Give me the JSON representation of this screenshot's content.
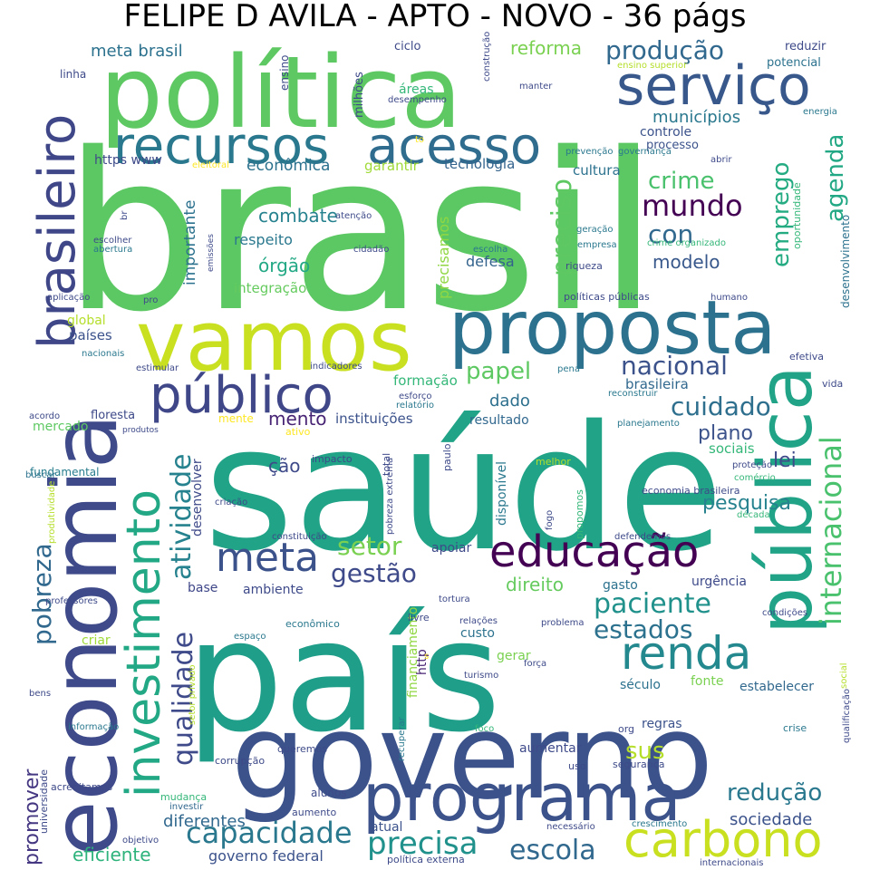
{
  "title": "FELIPE D AVILA - APTO - NOVO - 36 págs",
  "palette": {
    "dark_purple": "#440154",
    "indigo": "#3b528b",
    "blue": "#31688e",
    "teal": "#21908d",
    "green": "#35b779",
    "light_green": "#6ece58",
    "lime": "#b5de2b",
    "yellow": "#fde725"
  },
  "words": [
    {
      "text": "brasil",
      "color": "#5cc863"
    },
    {
      "text": "saúde",
      "color": "#20a386"
    },
    {
      "text": "país",
      "color": "#1f9e89"
    },
    {
      "text": "governo",
      "color": "#3b528b"
    },
    {
      "text": "política",
      "color": "#5ec962"
    },
    {
      "text": "economia",
      "color": "#3e4a89"
    },
    {
      "text": "vamos",
      "color": "#c8e020"
    },
    {
      "text": "proposta",
      "color": "#2c728e"
    },
    {
      "text": "pública",
      "color": "#20a386"
    },
    {
      "text": "programa",
      "color": "#3b528b"
    },
    {
      "text": "investimento",
      "color": "#22a884"
    },
    {
      "text": "serviço",
      "color": "#38588c"
    },
    {
      "text": "recursos",
      "color": "#2a788e"
    },
    {
      "text": "acesso",
      "color": "#2f6c8e"
    },
    {
      "text": "brasileiro",
      "color": "#3f4788"
    },
    {
      "text": "público",
      "color": "#3f4788"
    },
    {
      "text": "educação",
      "color": "#440154"
    },
    {
      "text": "renda",
      "color": "#23898e"
    },
    {
      "text": "carbono",
      "color": "#c8e020"
    },
    {
      "text": "meta",
      "color": "#3b528b"
    },
    {
      "text": "precisa",
      "color": "#21918c"
    },
    {
      "text": "capacidade",
      "color": "#2a788e"
    },
    {
      "text": "escola",
      "color": "#31688e"
    },
    {
      "text": "internacional",
      "color": "#4ac16d"
    },
    {
      "text": "qualidade",
      "color": "#3e4a89"
    },
    {
      "text": "atividade",
      "color": "#26828e"
    },
    {
      "text": "pobreza",
      "color": "#31688e"
    },
    {
      "text": "promover",
      "color": "#453781"
    },
    {
      "text": "paciente",
      "color": "#21918c"
    },
    {
      "text": "estados",
      "color": "#2c728e"
    },
    {
      "text": "nacional",
      "color": "#3b528b"
    },
    {
      "text": "cuidado",
      "color": "#2e6f8e"
    },
    {
      "text": "redução",
      "color": "#2a788e"
    },
    {
      "text": "setor",
      "color": "#7ad151"
    },
    {
      "text": "gestão",
      "color": "#3e4a89"
    },
    {
      "text": "produção",
      "color": "#31688e"
    },
    {
      "text": "mundo",
      "color": "#440154"
    },
    {
      "text": "con",
      "color": "#31688e"
    },
    {
      "text": "crime",
      "color": "#4ac16d"
    },
    {
      "text": "preciso",
      "color": "#5ec962"
    },
    {
      "text": "agenda",
      "color": "#22a884"
    },
    {
      "text": "emprego",
      "color": "#25ab82"
    },
    {
      "text": "papel",
      "color": "#5ec962"
    },
    {
      "text": "sus",
      "color": "#b5de2b"
    },
    {
      "text": "lei",
      "color": "#3e4a89"
    },
    {
      "text": "plano",
      "color": "#3b528b"
    },
    {
      "text": "pesquisa",
      "color": "#26828e"
    },
    {
      "text": "direito",
      "color": "#65cb5e"
    },
    {
      "text": "mento",
      "color": "#482475"
    },
    {
      "text": "dado",
      "color": "#2d708e"
    },
    {
      "text": "ção",
      "color": "#3e4a89"
    },
    {
      "text": "modelo",
      "color": "#38588c"
    },
    {
      "text": "combate",
      "color": "#26828e"
    },
    {
      "text": "órgão",
      "color": "#22a884"
    },
    {
      "text": "sociedade",
      "color": "#3b528b"
    },
    {
      "text": "diferentes",
      "color": "#31688e"
    },
    {
      "text": "eficiente",
      "color": "#2eb37c"
    },
    {
      "text": "governo federal",
      "color": "#3b528b"
    },
    {
      "text": "reforma",
      "color": "#7ad151"
    },
    {
      "text": "meta brasil",
      "color": "#2c728e"
    },
    {
      "text": "municípios",
      "color": "#2a788e"
    },
    {
      "text": "econômica",
      "color": "#2c728e"
    },
    {
      "text": "tecnologia",
      "color": "#33638d"
    },
    {
      "text": "garantir",
      "color": "#a0da39"
    },
    {
      "text": "cultura",
      "color": "#2c728e"
    },
    {
      "text": "controle",
      "color": "#3b528b"
    },
    {
      "text": "processo",
      "color": "#3b528b"
    },
    {
      "text": "https www",
      "color": "#3e4a89"
    },
    {
      "text": "importante",
      "color": "#2c728e"
    },
    {
      "text": "respeito",
      "color": "#2a788e"
    },
    {
      "text": "integração",
      "color": "#65cb5e"
    },
    {
      "text": "precisamos",
      "color": "#90d743"
    },
    {
      "text": "defesa",
      "color": "#33638d"
    },
    {
      "text": "países",
      "color": "#3b528b"
    },
    {
      "text": "global",
      "color": "#b5de2b"
    },
    {
      "text": "formação",
      "color": "#35b779"
    },
    {
      "text": "instituições",
      "color": "#3b528b"
    },
    {
      "text": "resultado",
      "color": "#31688e"
    },
    {
      "text": "brasileira",
      "color": "#31688e"
    },
    {
      "text": "sociais",
      "color": "#35b779"
    },
    {
      "text": "mercado",
      "color": "#5ec962"
    },
    {
      "text": "floresta",
      "color": "#3e4a89"
    },
    {
      "text": "fundamental",
      "color": "#287d8e"
    },
    {
      "text": "desenvolver",
      "color": "#3e4a89"
    },
    {
      "text": "disponível",
      "color": "#2a788e"
    },
    {
      "text": "apoiar",
      "color": "#3e4a89"
    },
    {
      "text": "base",
      "color": "#3f4788"
    },
    {
      "text": "ambiente",
      "color": "#3e4a89"
    },
    {
      "text": "gasto",
      "color": "#2c728e"
    },
    {
      "text": "urgência",
      "color": "#3e4a89"
    },
    {
      "text": "custo",
      "color": "#2c728e"
    },
    {
      "text": "gerar",
      "color": "#7ad151"
    },
    {
      "text": "criar",
      "color": "#a0da39"
    },
    {
      "text": "http",
      "color": "#482475"
    },
    {
      "text": "financiamento",
      "color": "#90d743"
    },
    {
      "text": "século",
      "color": "#2c728e"
    },
    {
      "text": "fonte",
      "color": "#7ad151"
    },
    {
      "text": "estabelecer",
      "color": "#31688e"
    },
    {
      "text": "regras",
      "color": "#3b528b"
    },
    {
      "text": "aumentar",
      "color": "#3e4a89"
    },
    {
      "text": "atual",
      "color": "#3b528b"
    },
    {
      "text": "alunos",
      "color": "#3e4a89"
    },
    {
      "text": "aumento",
      "color": "#3e4a89"
    },
    {
      "text": "mudança",
      "color": "#35b779"
    },
    {
      "text": "investir",
      "color": "#31688e"
    },
    {
      "text": "objetivo",
      "color": "#3e4a89"
    },
    {
      "text": "acreditamos",
      "color": "#3e4a89"
    },
    {
      "text": "universidade",
      "color": "#3e4a89"
    },
    {
      "text": "corrupção",
      "color": "#3e4a89"
    },
    {
      "text": "queremos",
      "color": "#3e4a89"
    },
    {
      "text": "informação",
      "color": "#2a788e"
    },
    {
      "text": "bens",
      "color": "#3e4a89"
    },
    {
      "text": "professores",
      "color": "#3e4a89"
    },
    {
      "text": "produtividade",
      "color": "#b5de2b"
    },
    {
      "text": "buscar",
      "color": "#2c728e"
    },
    {
      "text": "acordo",
      "color": "#3e4a89"
    },
    {
      "text": "produtos",
      "color": "#3e4a89"
    },
    {
      "text": "estimular",
      "color": "#3e4a89"
    },
    {
      "text": "indicadores",
      "color": "#3e4a89"
    },
    {
      "text": "nacionais",
      "color": "#2a788e"
    },
    {
      "text": "aplicação",
      "color": "#3e4a89"
    },
    {
      "text": "pro",
      "color": "#3e4a89"
    },
    {
      "text": "emissões",
      "color": "#3e4a89"
    },
    {
      "text": "abertura",
      "color": "#2a788e"
    },
    {
      "text": "escolher",
      "color": "#3e4a89"
    },
    {
      "text": "br",
      "color": "#3e4a89"
    },
    {
      "text": "linha",
      "color": "#3e4a89"
    },
    {
      "text": "ensino",
      "color": "#3e4a89"
    },
    {
      "text": "milhões",
      "color": "#3e4a89"
    },
    {
      "text": "ciclo",
      "color": "#3e4a89"
    },
    {
      "text": "construção",
      "color": "#3e4a89"
    },
    {
      "text": "áreas",
      "color": "#35b779"
    },
    {
      "text": "desempenho",
      "color": "#3e4a89"
    },
    {
      "text": "manter",
      "color": "#3e4a89"
    },
    {
      "text": "ensino superior",
      "color": "#b5de2b"
    },
    {
      "text": "reduzir",
      "color": "#3e4a89"
    },
    {
      "text": "potencial",
      "color": "#2c728e"
    },
    {
      "text": "energia",
      "color": "#2a788e"
    },
    {
      "text": "prevenção",
      "color": "#2a788e"
    },
    {
      "text": "governança",
      "color": "#2a788e"
    },
    {
      "text": "abrir",
      "color": "#3e4a89"
    },
    {
      "text": "oportunidade",
      "color": "#35b779"
    },
    {
      "text": "desenvolvimento",
      "color": "#2c728e"
    },
    {
      "text": "to",
      "color": "#fde725"
    },
    {
      "text": "eleitoral",
      "color": "#fde725"
    },
    {
      "text": "atenção",
      "color": "#3e4a89"
    },
    {
      "text": "cidadão",
      "color": "#3e4a89"
    },
    {
      "text": "escolha",
      "color": "#2a788e"
    },
    {
      "text": "geração",
      "color": "#2a788e"
    },
    {
      "text": "empresa",
      "color": "#2a788e"
    },
    {
      "text": "crime organizado",
      "color": "#35b779"
    },
    {
      "text": "riqueza",
      "color": "#3e4a89"
    },
    {
      "text": "políticas públicas",
      "color": "#3e4a89"
    },
    {
      "text": "humano",
      "color": "#3e4a89"
    },
    {
      "text": "pena",
      "color": "#2a788e"
    },
    {
      "text": "efetiva",
      "color": "#3e4a89"
    },
    {
      "text": "esforço",
      "color": "#3e4a89"
    },
    {
      "text": "relatório",
      "color": "#2a788e"
    },
    {
      "text": "reconstruir",
      "color": "#2a788e"
    },
    {
      "text": "vida",
      "color": "#3e4a89"
    },
    {
      "text": "mente",
      "color": "#fde725"
    },
    {
      "text": "ativo",
      "color": "#fde725"
    },
    {
      "text": "planejamento",
      "color": "#2a788e"
    },
    {
      "text": "impacto",
      "color": "#3e4a89"
    },
    {
      "text": "total",
      "color": "#3e4a89"
    },
    {
      "text": "paulo",
      "color": "#3e4a89"
    },
    {
      "text": "pobreza extrema",
      "color": "#3e4a89"
    },
    {
      "text": "melhor",
      "color": "#b5de2b"
    },
    {
      "text": "proteção",
      "color": "#3e4a89"
    },
    {
      "text": "comércio",
      "color": "#35b779"
    },
    {
      "text": "economia brasileira",
      "color": "#3e4a89"
    },
    {
      "text": "década",
      "color": "#35b779"
    },
    {
      "text": "criação",
      "color": "#3e4a89"
    },
    {
      "text": "constituição",
      "color": "#3e4a89"
    },
    {
      "text": "fogo",
      "color": "#3e4a89"
    },
    {
      "text": "propomos",
      "color": "#35b779"
    },
    {
      "text": "defendemos",
      "color": "#3e4a89"
    },
    {
      "text": "livre",
      "color": "#3e4a89"
    },
    {
      "text": "relações",
      "color": "#3e4a89"
    },
    {
      "text": "tortura",
      "color": "#3e4a89"
    },
    {
      "text": "condições",
      "color": "#3e4a89"
    },
    {
      "text": "espaço",
      "color": "#2a788e"
    },
    {
      "text": "econômico",
      "color": "#2a788e"
    },
    {
      "text": "problema",
      "color": "#3e4a89"
    },
    {
      "text": "setor privado",
      "color": "#b5de2b"
    },
    {
      "text": "turismo",
      "color": "#3e4a89"
    },
    {
      "text": "força",
      "color": "#3e4a89"
    },
    {
      "text": "social",
      "color": "#b5de2b"
    },
    {
      "text": "qualificação",
      "color": "#3e4a89"
    },
    {
      "text": "recuperar",
      "color": "#2a788e"
    },
    {
      "text": "foco",
      "color": "#35b779"
    },
    {
      "text": "org",
      "color": "#3e4a89"
    },
    {
      "text": "crise",
      "color": "#2a788e"
    },
    {
      "text": "uso",
      "color": "#3e4a89"
    },
    {
      "text": "segurança",
      "color": "#3e4a89"
    },
    {
      "text": "necessário",
      "color": "#3e4a89"
    },
    {
      "text": "crescimento",
      "color": "#2a788e"
    },
    {
      "text": "política externa",
      "color": "#3e4a89"
    },
    {
      "text": "internacionais",
      "color": "#3e4a89"
    },
    {
      "text": "s",
      "color": "#fde725"
    }
  ]
}
